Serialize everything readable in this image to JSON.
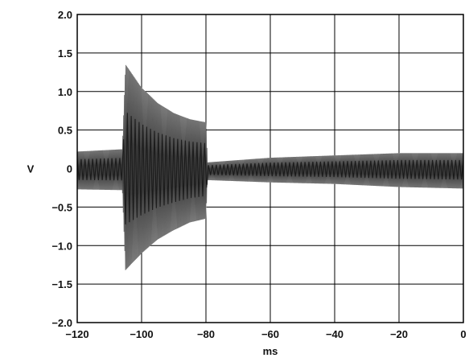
{
  "chart_data": {
    "type": "line",
    "title": "",
    "xlabel": "ms",
    "ylabel": "V",
    "xlim": [
      -120,
      0
    ],
    "ylim": [
      -2.0,
      2.0
    ],
    "x_ticks": [
      -120,
      -100,
      -80,
      -60,
      -40,
      -20,
      0
    ],
    "x_tick_labels": [
      "−120",
      "−100",
      "−80",
      "−60",
      "−40",
      "−20",
      "0"
    ],
    "y_ticks": [
      2.0,
      1.5,
      1.0,
      0.5,
      0,
      -0.5,
      -1.0,
      -1.5,
      -2.0
    ],
    "y_tick_labels": [
      "2.0",
      "1.5",
      "1.0",
      "0.5",
      "0",
      "−0.5",
      "−1.0",
      "−1.5",
      "−2.0"
    ],
    "grid": true,
    "series": [
      {
        "color": "#222222",
        "envelope": [
          {
            "x": -120,
            "upper": 0.22,
            "lower": -0.27
          },
          {
            "x": -106,
            "upper": 0.25,
            "lower": -0.28
          },
          {
            "x": -105,
            "upper": 1.35,
            "lower": -1.32
          },
          {
            "x": -100,
            "upper": 1.05,
            "lower": -1.1
          },
          {
            "x": -95,
            "upper": 0.85,
            "lower": -0.92
          },
          {
            "x": -90,
            "upper": 0.72,
            "lower": -0.8
          },
          {
            "x": -85,
            "upper": 0.64,
            "lower": -0.7
          },
          {
            "x": -80,
            "upper": 0.6,
            "lower": -0.65
          },
          {
            "x": -79.5,
            "upper": 0.08,
            "lower": -0.15
          },
          {
            "x": -60,
            "upper": 0.14,
            "lower": -0.18
          },
          {
            "x": -40,
            "upper": 0.17,
            "lower": -0.2
          },
          {
            "x": -20,
            "upper": 0.2,
            "lower": -0.24
          },
          {
            "x": 0,
            "upper": 0.2,
            "lower": -0.26
          }
        ]
      }
    ]
  }
}
